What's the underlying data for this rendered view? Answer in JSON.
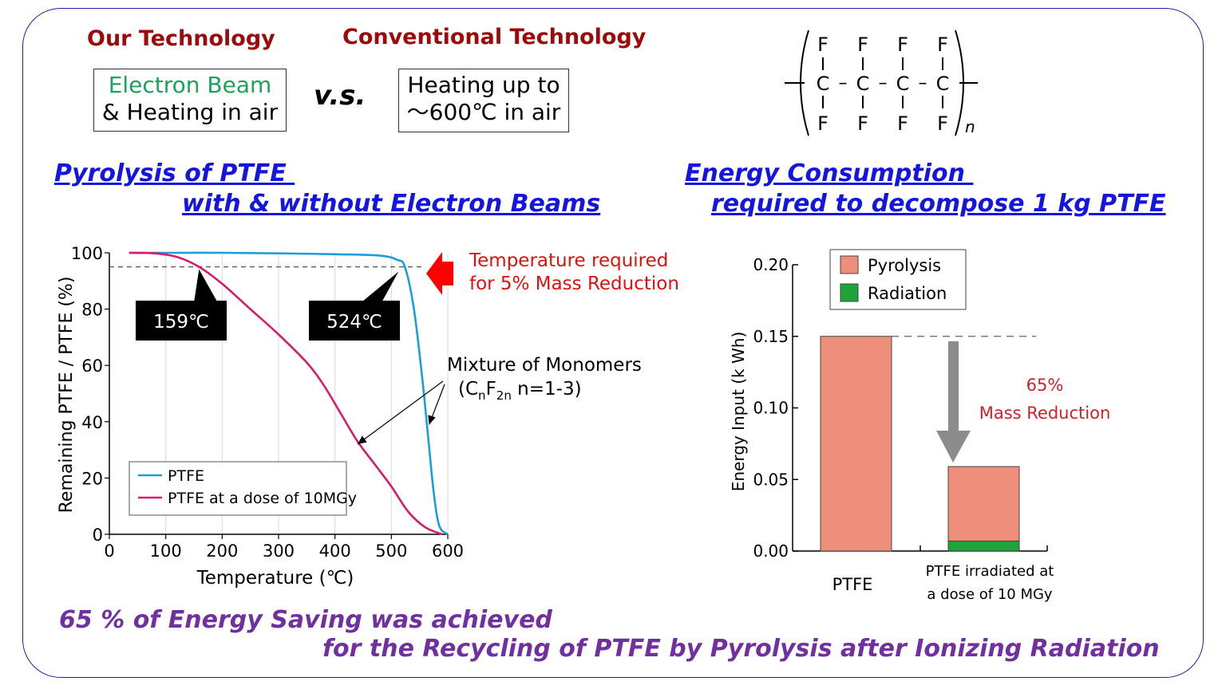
{
  "headers": {
    "our_technology": "Our Technology",
    "conventional_technology": "Conventional Technology",
    "vs": "v.s."
  },
  "our_box": {
    "line1": "Electron Beam",
    "line2": "& Heating in air"
  },
  "conventional_box": {
    "line1": "Heating up to",
    "line2": "～600℃ in air"
  },
  "formula": {
    "fluorine": "F",
    "carbon": "C",
    "dash": "–",
    "subscript": "n"
  },
  "section_left": {
    "line1": "Pyrolysis of PTFE ",
    "line2": "with & without Electron Beams"
  },
  "section_right": {
    "line1": "Energy Consumption ",
    "line2": "required to decompose 1 kg PTFE"
  },
  "conclusion": {
    "line1": "65 % of Energy Saving was achieved",
    "line2": "for the Recycling of PTFE by Pyrolysis after Ionizing Radiation"
  },
  "colors": {
    "ptfe_line": "#1a9fdb",
    "irradiated_line": "#d81b6a",
    "pyrolysis_bar": "#ee8f7c",
    "radiation_bar": "#1fa43a",
    "arrow_red": "#ff0000",
    "arrow_gray": "#8c8c8c",
    "heading_blue": "#1515e0",
    "heading_red": "#9b0b0b",
    "conclusion_purple": "#7030a0"
  },
  "chart_data": [
    {
      "type": "line",
      "xlabel": "Temperature (℃)",
      "ylabel": "Remaining PTFE / PTFE (%)",
      "xlim": [
        0,
        600
      ],
      "ylim": [
        0,
        100
      ],
      "x_ticks": [
        "0",
        "100",
        "200",
        "300",
        "400",
        "500",
        "600"
      ],
      "y_ticks": [
        "0",
        "20",
        "40",
        "60",
        "80",
        "100"
      ],
      "grid": "vertical",
      "legend_position": "bottom-center",
      "reference_line_y": 95,
      "series": [
        {
          "name": "PTFE",
          "color_key": "ptfe_line",
          "points": [
            [
              35,
              100
            ],
            [
              100,
              100
            ],
            [
              200,
              100
            ],
            [
              300,
              99.8
            ],
            [
              400,
              99.5
            ],
            [
              480,
              99
            ],
            [
              510,
              97.5
            ],
            [
              524,
              95
            ],
            [
              540,
              80
            ],
            [
              555,
              55
            ],
            [
              565,
              35
            ],
            [
              575,
              15
            ],
            [
              585,
              3
            ],
            [
              600,
              0
            ]
          ]
        },
        {
          "name": "PTFE at a dose of 10MGy",
          "color_key": "irradiated_line",
          "points": [
            [
              35,
              100
            ],
            [
              80,
              99.8
            ],
            [
              120,
              98.5
            ],
            [
              159,
              95
            ],
            [
              200,
              89
            ],
            [
              250,
              80
            ],
            [
              300,
              71
            ],
            [
              350,
              61
            ],
            [
              380,
              53
            ],
            [
              410,
              43
            ],
            [
              440,
              33
            ],
            [
              470,
              25
            ],
            [
              500,
              17
            ],
            [
              530,
              8
            ],
            [
              560,
              2.5
            ],
            [
              590,
              0
            ]
          ]
        }
      ],
      "callouts": [
        {
          "label": "159℃",
          "x": 159
        },
        {
          "label": "524℃",
          "x": 524
        }
      ],
      "annotations": {
        "temperature_note": [
          "Temperature required",
          "for 5% Mass Reduction"
        ],
        "monomers": "Mixture of Monomers",
        "formula_prefix": "(C",
        "formula_sub1": "n",
        "formula_mid": "F",
        "formula_sub2": "2n",
        "formula_suffix": " n=1-3)"
      }
    },
    {
      "type": "bar",
      "stacked": true,
      "ylabel": "Energy Input (k Wh)",
      "ylim": [
        0,
        0.2
      ],
      "y_ticks": [
        "0.00",
        "0.05",
        "0.10",
        "0.15",
        "0.20"
      ],
      "categories": [
        "PTFE",
        "PTFE irradiated at a dose of 10 MGy"
      ],
      "category_lines": [
        [
          "PTFE"
        ],
        [
          "PTFE irradiated at",
          "a dose of 10 MGy"
        ]
      ],
      "series": [
        {
          "name": "Pyrolysis",
          "color_key": "pyrolysis_bar",
          "values": [
            0.15,
            0.052
          ]
        },
        {
          "name": "Radiation",
          "color_key": "radiation_bar",
          "values": [
            0.0,
            0.007
          ]
        }
      ],
      "legend_position": "top-left",
      "reference_line_y": 0.15,
      "annotation": [
        "65%",
        "Mass Reduction"
      ]
    }
  ]
}
